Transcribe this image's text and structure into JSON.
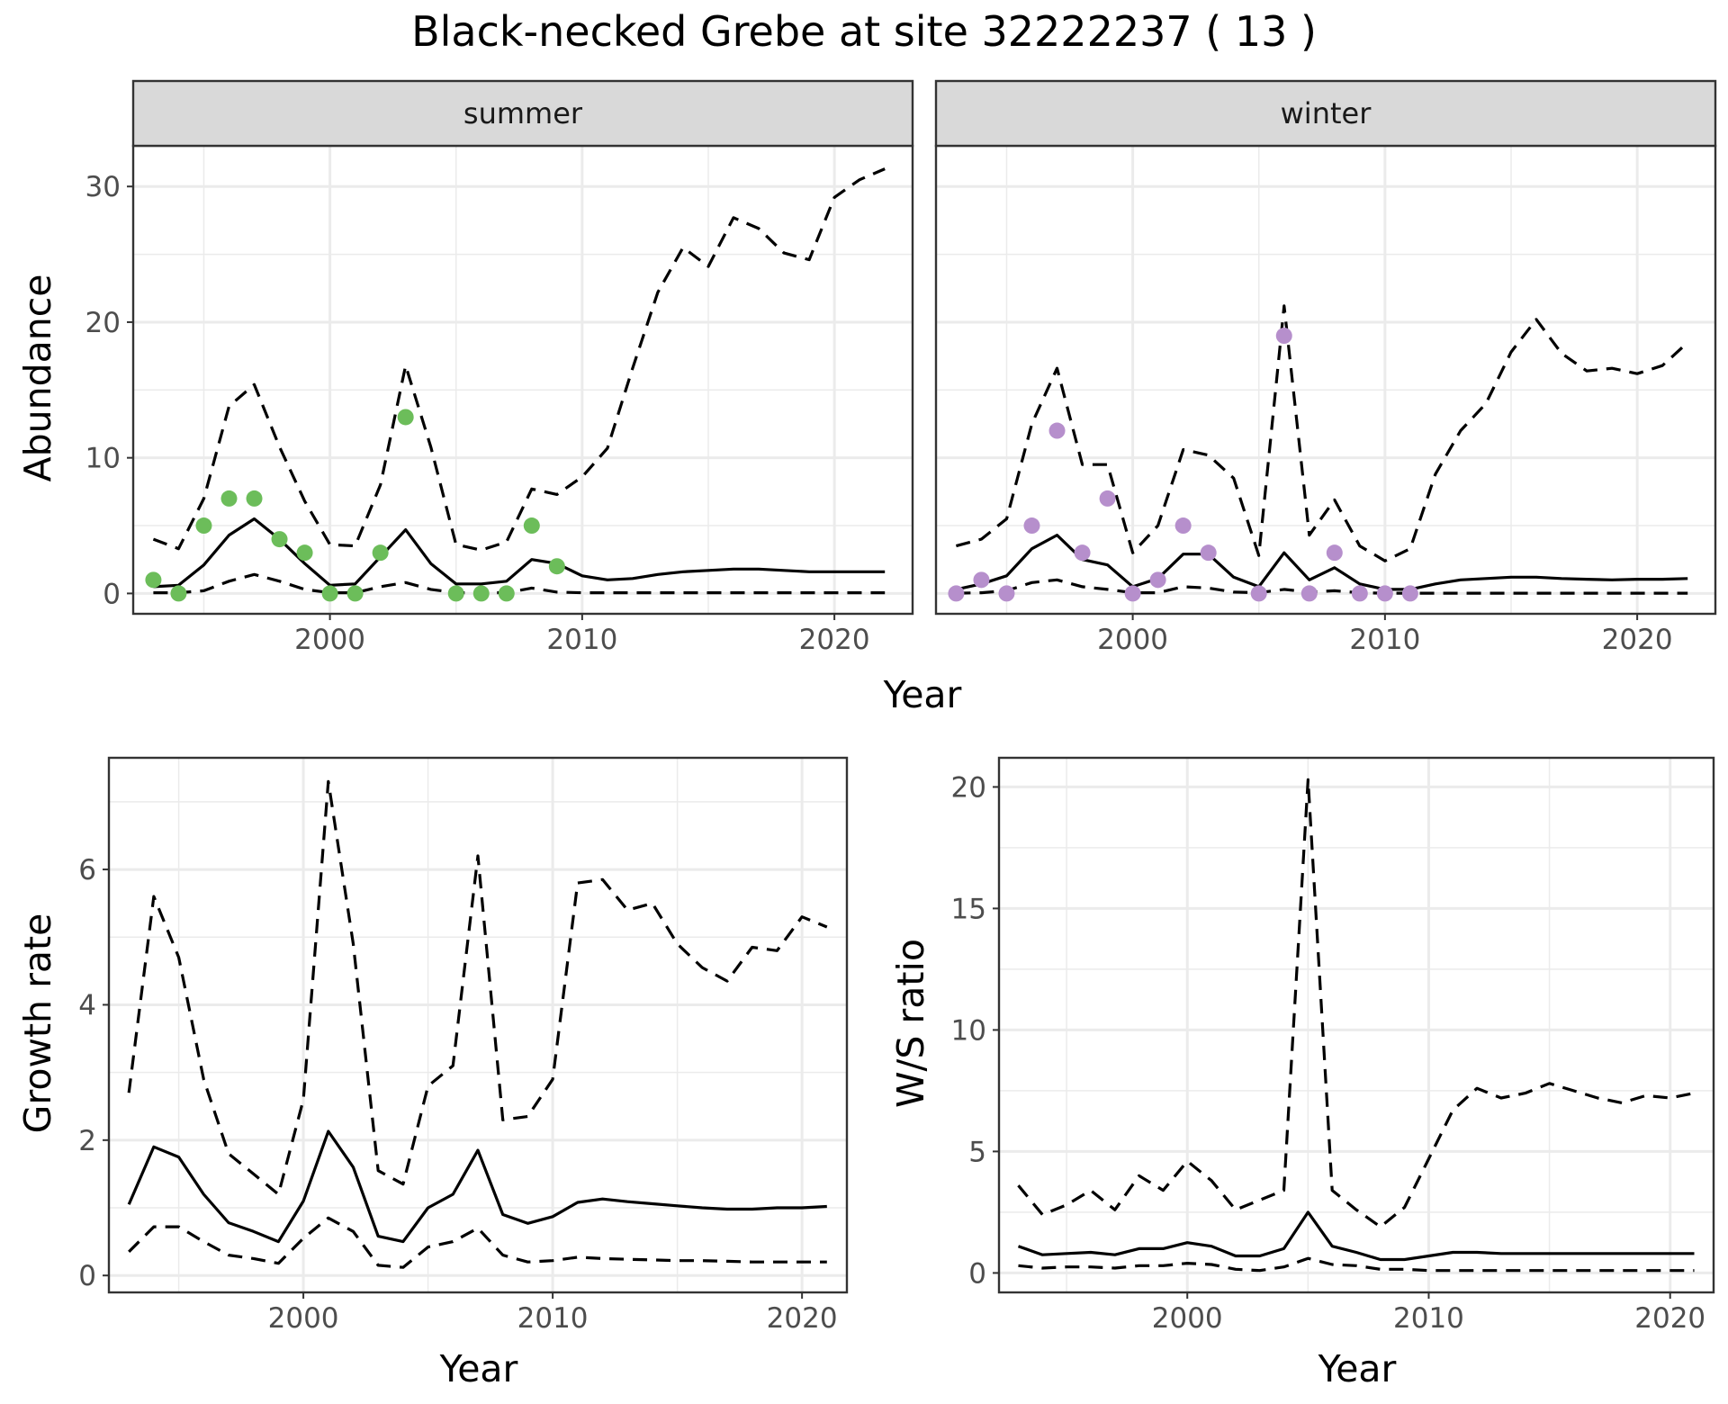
{
  "title": "Black-necked Grebe at site 32222237 ( 13 )",
  "colors": {
    "summer_points": "#6cbd5a",
    "winter_points": "#b68fcc",
    "line": "#000000",
    "strip": "#d9d9d9",
    "grid": "#ebebeb"
  },
  "chart_data": [
    {
      "type": "line",
      "panel": "summer",
      "strip_label": "summer",
      "xlabel": "Year",
      "ylabel": "Abundance",
      "xlim": [
        1992.2,
        2023.1
      ],
      "ylim": [
        -1.5,
        33
      ],
      "x_ticks": [
        2000,
        2010,
        2020
      ],
      "y_ticks": [
        0,
        10,
        20,
        30
      ],
      "series": [
        {
          "style": "solid",
          "x": [
            1993,
            1994,
            1995,
            1996,
            1997,
            1998,
            1999,
            2000,
            2001,
            2002,
            2003,
            2004,
            2005,
            2006,
            2007,
            2008,
            2009,
            2010,
            2011,
            2012,
            2013,
            2014,
            2015,
            2016,
            2017,
            2018,
            2019,
            2020,
            2021,
            2022
          ],
          "y": [
            0.5,
            0.6,
            2.1,
            4.3,
            5.5,
            4.0,
            2.2,
            0.6,
            0.7,
            2.7,
            4.7,
            2.2,
            0.7,
            0.7,
            0.9,
            2.5,
            2.2,
            1.3,
            1.0,
            1.1,
            1.4,
            1.6,
            1.7,
            1.8,
            1.8,
            1.7,
            1.6,
            1.6,
            1.6,
            1.6
          ]
        },
        {
          "style": "dashed",
          "x": [
            1993,
            1994,
            1995,
            1996,
            1997,
            1998,
            1999,
            2000,
            2001,
            2002,
            2003,
            2004,
            2005,
            2006,
            2007,
            2008,
            2009,
            2010,
            2011,
            2012,
            2013,
            2014,
            2015,
            2016,
            2017,
            2018,
            2019,
            2020,
            2021,
            2022
          ],
          "y": [
            4.0,
            3.3,
            7.0,
            13.8,
            15.4,
            10.8,
            6.8,
            3.6,
            3.5,
            8.0,
            16.8,
            10.8,
            3.6,
            3.2,
            3.8,
            7.7,
            7.3,
            8.6,
            10.7,
            16.6,
            22.2,
            25.5,
            24.1,
            27.7,
            26.9,
            25.1,
            24.6,
            29.2,
            30.5,
            31.3
          ]
        },
        {
          "style": "dashed",
          "x": [
            1993,
            1994,
            1995,
            1996,
            1997,
            1998,
            1999,
            2000,
            2001,
            2002,
            2003,
            2004,
            2005,
            2006,
            2007,
            2008,
            2009,
            2010,
            2011,
            2012,
            2013,
            2014,
            2015,
            2016,
            2017,
            2018,
            2019,
            2020,
            2021,
            2022
          ],
          "y": [
            0.05,
            0.05,
            0.2,
            0.9,
            1.4,
            0.9,
            0.3,
            0.05,
            0.05,
            0.5,
            0.8,
            0.3,
            0.05,
            0.05,
            0.05,
            0.4,
            0.1,
            0.05,
            0.05,
            0.05,
            0.05,
            0.05,
            0.05,
            0.05,
            0.05,
            0.05,
            0.05,
            0.05,
            0.05,
            0.05
          ]
        }
      ],
      "points": {
        "x": [
          1993,
          1994,
          1995,
          1996,
          1997,
          1998,
          1999,
          2000,
          2001,
          2002,
          2003,
          2005,
          2006,
          2007,
          2008,
          2009
        ],
        "y": [
          1,
          0,
          5,
          7,
          7,
          4,
          3,
          0,
          0,
          3,
          13,
          0,
          0,
          0,
          5,
          2
        ]
      }
    },
    {
      "type": "line",
      "panel": "winter",
      "strip_label": "winter",
      "xlabel": "Year",
      "ylabel": "",
      "xlim": [
        1992.2,
        2023.1
      ],
      "ylim": [
        -1.5,
        33
      ],
      "x_ticks": [
        2000,
        2010,
        2020
      ],
      "y_ticks": [
        0,
        10,
        20,
        30
      ],
      "series": [
        {
          "style": "solid",
          "x": [
            1993,
            1994,
            1995,
            1996,
            1997,
            1998,
            1999,
            2000,
            2001,
            2002,
            2003,
            2004,
            2005,
            2006,
            2007,
            2008,
            2009,
            2010,
            2011,
            2012,
            2013,
            2014,
            2015,
            2016,
            2017,
            2018,
            2019,
            2020,
            2021,
            2022
          ],
          "y": [
            0.3,
            0.7,
            1.3,
            3.3,
            4.3,
            2.5,
            2.1,
            0.5,
            1.1,
            2.9,
            2.9,
            1.2,
            0.5,
            3.0,
            1.0,
            1.9,
            0.7,
            0.3,
            0.3,
            0.7,
            1.0,
            1.1,
            1.2,
            1.2,
            1.1,
            1.05,
            1.0,
            1.05,
            1.05,
            1.1
          ]
        },
        {
          "style": "dashed",
          "x": [
            1993,
            1994,
            1995,
            1996,
            1997,
            1998,
            1999,
            2000,
            2001,
            2002,
            2003,
            2004,
            2005,
            2006,
            2007,
            2008,
            2009,
            2010,
            2011,
            2012,
            2013,
            2014,
            2015,
            2016,
            2017,
            2018,
            2019,
            2020,
            2021,
            2022
          ],
          "y": [
            3.5,
            4.0,
            5.5,
            12.5,
            16.6,
            9.5,
            9.5,
            3.0,
            5.0,
            10.6,
            10.2,
            8.5,
            2.8,
            21.2,
            4.3,
            6.9,
            3.5,
            2.4,
            3.3,
            8.8,
            12.0,
            14.0,
            17.8,
            20.2,
            17.7,
            16.4,
            16.6,
            16.2,
            16.8,
            18.5
          ]
        },
        {
          "style": "dashed",
          "x": [
            1993,
            1994,
            1995,
            1996,
            1997,
            1998,
            1999,
            2000,
            2001,
            2002,
            2003,
            2004,
            2005,
            2006,
            2007,
            2008,
            2009,
            2010,
            2011,
            2012,
            2013,
            2014,
            2015,
            2016,
            2017,
            2018,
            2019,
            2020,
            2021,
            2022
          ],
          "y": [
            0.02,
            0.05,
            0.2,
            0.8,
            1.0,
            0.5,
            0.3,
            0.05,
            0.05,
            0.5,
            0.4,
            0.1,
            0.05,
            0.3,
            0.1,
            0.2,
            0.05,
            0.02,
            0.02,
            0.02,
            0.02,
            0.02,
            0.02,
            0.02,
            0.02,
            0.02,
            0.02,
            0.02,
            0.02,
            0.02
          ]
        }
      ],
      "points": {
        "x": [
          1993,
          1994,
          1995,
          1996,
          1997,
          1998,
          1999,
          2000,
          2001,
          2002,
          2003,
          2005,
          2006,
          2007,
          2008,
          2009,
          2010,
          2011
        ],
        "y": [
          0,
          1,
          0,
          5,
          12,
          3,
          7,
          0,
          1,
          5,
          3,
          0,
          19,
          0,
          3,
          0,
          0,
          0
        ]
      }
    },
    {
      "type": "line",
      "panel": "growth",
      "xlabel": "Year",
      "ylabel": "Growth rate",
      "xlim": [
        1992.2,
        2021.8
      ],
      "ylim": [
        -0.25,
        7.65
      ],
      "x_ticks": [
        2000,
        2010,
        2020
      ],
      "y_ticks": [
        0,
        2,
        4,
        6
      ],
      "series": [
        {
          "style": "solid",
          "x": [
            1993,
            1994,
            1995,
            1996,
            1997,
            1998,
            1999,
            2000,
            2001,
            2002,
            2003,
            2004,
            2005,
            2006,
            2007,
            2008,
            2009,
            2010,
            2011,
            2012,
            2013,
            2014,
            2015,
            2016,
            2017,
            2018,
            2019,
            2020,
            2021
          ],
          "y": [
            1.05,
            1.9,
            1.75,
            1.2,
            0.78,
            0.65,
            0.5,
            1.1,
            2.13,
            1.6,
            0.58,
            0.5,
            1.0,
            1.2,
            1.85,
            0.9,
            0.77,
            0.87,
            1.08,
            1.13,
            1.09,
            1.06,
            1.03,
            1.0,
            0.98,
            0.98,
            1.0,
            1.0,
            1.02
          ]
        },
        {
          "style": "dashed",
          "x": [
            1993,
            1994,
            1995,
            1996,
            1997,
            1998,
            1999,
            2000,
            2001,
            2002,
            2003,
            2004,
            2005,
            2006,
            2007,
            2008,
            2009,
            2010,
            2011,
            2012,
            2013,
            2014,
            2015,
            2016,
            2017,
            2018,
            2019,
            2020,
            2021
          ],
          "y": [
            2.7,
            5.6,
            4.7,
            2.9,
            1.8,
            1.5,
            1.2,
            2.6,
            7.3,
            4.9,
            1.55,
            1.35,
            2.8,
            3.1,
            6.2,
            2.3,
            2.35,
            2.9,
            5.8,
            5.85,
            5.4,
            5.5,
            4.9,
            4.55,
            4.35,
            4.85,
            4.8,
            5.3,
            5.15
          ]
        },
        {
          "style": "dashed",
          "x": [
            1993,
            1994,
            1995,
            1996,
            1997,
            1998,
            1999,
            2000,
            2001,
            2002,
            2003,
            2004,
            2005,
            2006,
            2007,
            2008,
            2009,
            2010,
            2011,
            2012,
            2013,
            2014,
            2015,
            2016,
            2017,
            2018,
            2019,
            2020,
            2021
          ],
          "y": [
            0.35,
            0.72,
            0.72,
            0.5,
            0.3,
            0.25,
            0.18,
            0.55,
            0.85,
            0.65,
            0.15,
            0.12,
            0.42,
            0.5,
            0.7,
            0.3,
            0.2,
            0.22,
            0.27,
            0.25,
            0.24,
            0.23,
            0.22,
            0.22,
            0.21,
            0.2,
            0.2,
            0.2,
            0.2
          ]
        }
      ]
    },
    {
      "type": "line",
      "panel": "ws",
      "xlabel": "Year",
      "ylabel": "W/S ratio",
      "xlim": [
        1992.2,
        2021.8
      ],
      "ylim": [
        -0.8,
        21.2
      ],
      "x_ticks": [
        2000,
        2010,
        2020
      ],
      "y_ticks": [
        0,
        5,
        10,
        15,
        20
      ],
      "series": [
        {
          "style": "solid",
          "x": [
            1993,
            1994,
            1995,
            1996,
            1997,
            1998,
            1999,
            2000,
            2001,
            2002,
            2003,
            2004,
            2005,
            2006,
            2007,
            2008,
            2009,
            2010,
            2011,
            2012,
            2013,
            2014,
            2015,
            2016,
            2017,
            2018,
            2019,
            2020,
            2021
          ],
          "y": [
            1.1,
            0.75,
            0.8,
            0.85,
            0.75,
            1.0,
            1.0,
            1.25,
            1.1,
            0.7,
            0.7,
            1.0,
            2.5,
            1.1,
            0.85,
            0.55,
            0.55,
            0.7,
            0.85,
            0.85,
            0.8,
            0.8,
            0.8,
            0.8,
            0.8,
            0.8,
            0.8,
            0.8,
            0.8
          ]
        },
        {
          "style": "dashed",
          "x": [
            1993,
            1994,
            1995,
            1996,
            1997,
            1998,
            1999,
            2000,
            2001,
            2002,
            2003,
            2004,
            2005,
            2006,
            2007,
            2008,
            2009,
            2010,
            2011,
            2012,
            2013,
            2014,
            2015,
            2016,
            2017,
            2018,
            2019,
            2020,
            2021
          ],
          "y": [
            3.6,
            2.4,
            2.8,
            3.4,
            2.6,
            4.0,
            3.4,
            4.6,
            3.8,
            2.6,
            3.0,
            3.4,
            20.3,
            3.4,
            2.6,
            1.9,
            2.7,
            4.7,
            6.7,
            7.6,
            7.2,
            7.4,
            7.8,
            7.5,
            7.2,
            7.0,
            7.3,
            7.2,
            7.4
          ]
        },
        {
          "style": "dashed",
          "x": [
            1993,
            1994,
            1995,
            1996,
            1997,
            1998,
            1999,
            2000,
            2001,
            2002,
            2003,
            2004,
            2005,
            2006,
            2007,
            2008,
            2009,
            2010,
            2011,
            2012,
            2013,
            2014,
            2015,
            2016,
            2017,
            2018,
            2019,
            2020,
            2021
          ],
          "y": [
            0.3,
            0.2,
            0.25,
            0.25,
            0.2,
            0.3,
            0.3,
            0.4,
            0.35,
            0.15,
            0.1,
            0.25,
            0.6,
            0.35,
            0.3,
            0.15,
            0.15,
            0.1,
            0.1,
            0.1,
            0.1,
            0.1,
            0.1,
            0.1,
            0.1,
            0.1,
            0.1,
            0.1,
            0.1
          ]
        }
      ]
    }
  ]
}
